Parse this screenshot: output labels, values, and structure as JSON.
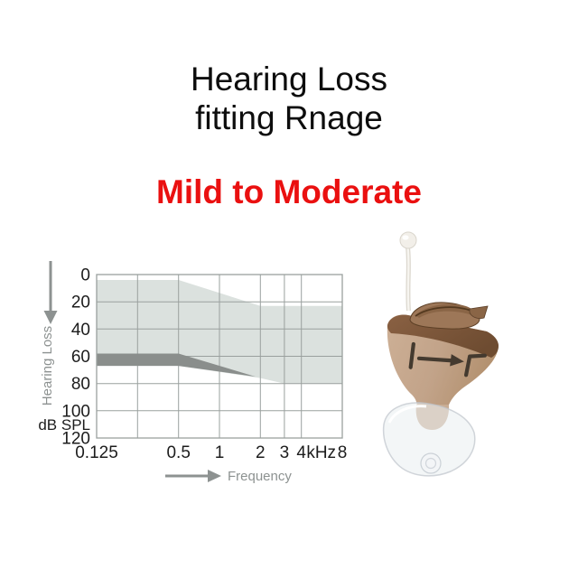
{
  "page": {
    "title_line1": "Hearing Loss",
    "title_line2": "fitting Rnage",
    "subtitle": "Mild to Moderate",
    "colors": {
      "title_text": "#0d0d0d",
      "subtitle_red": "#ea1010",
      "background": "#ffffff"
    }
  },
  "chart_data": {
    "type": "area",
    "title": "",
    "xlabel": "Frequency",
    "ylabel": "Hearing Loss",
    "unit_label": "dB SPL",
    "x_scale": "log2",
    "x_range_khz": [
      0.125,
      8
    ],
    "ylim": [
      0,
      120
    ],
    "y_axis_direction": "down",
    "grid": true,
    "y_ticks": [
      0,
      20,
      40,
      60,
      80,
      100,
      120
    ],
    "x_gridlines_khz": [
      0.125,
      0.25,
      0.5,
      1,
      2,
      3,
      4,
      8
    ],
    "x_tick_labels": [
      {
        "label": "0.125",
        "khz": 0.125
      },
      {
        "label": "0.5",
        "khz": 0.5
      },
      {
        "label": "1",
        "khz": 1
      },
      {
        "label": "2",
        "khz": 2
      },
      {
        "label": "3",
        "khz": 3
      },
      {
        "label": "4",
        "khz": 4
      },
      {
        "label": "kHz",
        "khz": 5.6
      },
      {
        "label": "8",
        "khz": 8
      }
    ],
    "series": [
      {
        "name": "fitting-range-area",
        "fill": "#dbe1de",
        "polygon_khz_db": [
          [
            0.125,
            4
          ],
          [
            0.5,
            4
          ],
          [
            2,
            23
          ],
          [
            8,
            23
          ],
          [
            8,
            80
          ],
          [
            3,
            80
          ],
          [
            2,
            76
          ],
          [
            0.5,
            67
          ],
          [
            0.125,
            67
          ]
        ]
      },
      {
        "name": "emphasis-band",
        "fill": "#8a8e8c",
        "polygon_khz_db": [
          [
            0.125,
            58
          ],
          [
            0.5,
            58
          ],
          [
            1.85,
            75
          ],
          [
            0.5,
            67
          ],
          [
            0.125,
            67
          ]
        ]
      }
    ],
    "grid_color": "#9aa09e",
    "axis_text_color": "#1c1c1c",
    "annotation_color": "#8d9291"
  },
  "product": {
    "name": "in-the-ear hearing aid",
    "faceplate_marking": "|→Γ",
    "body_color": "#c2a389",
    "cap_color": "#7e5a3e"
  }
}
